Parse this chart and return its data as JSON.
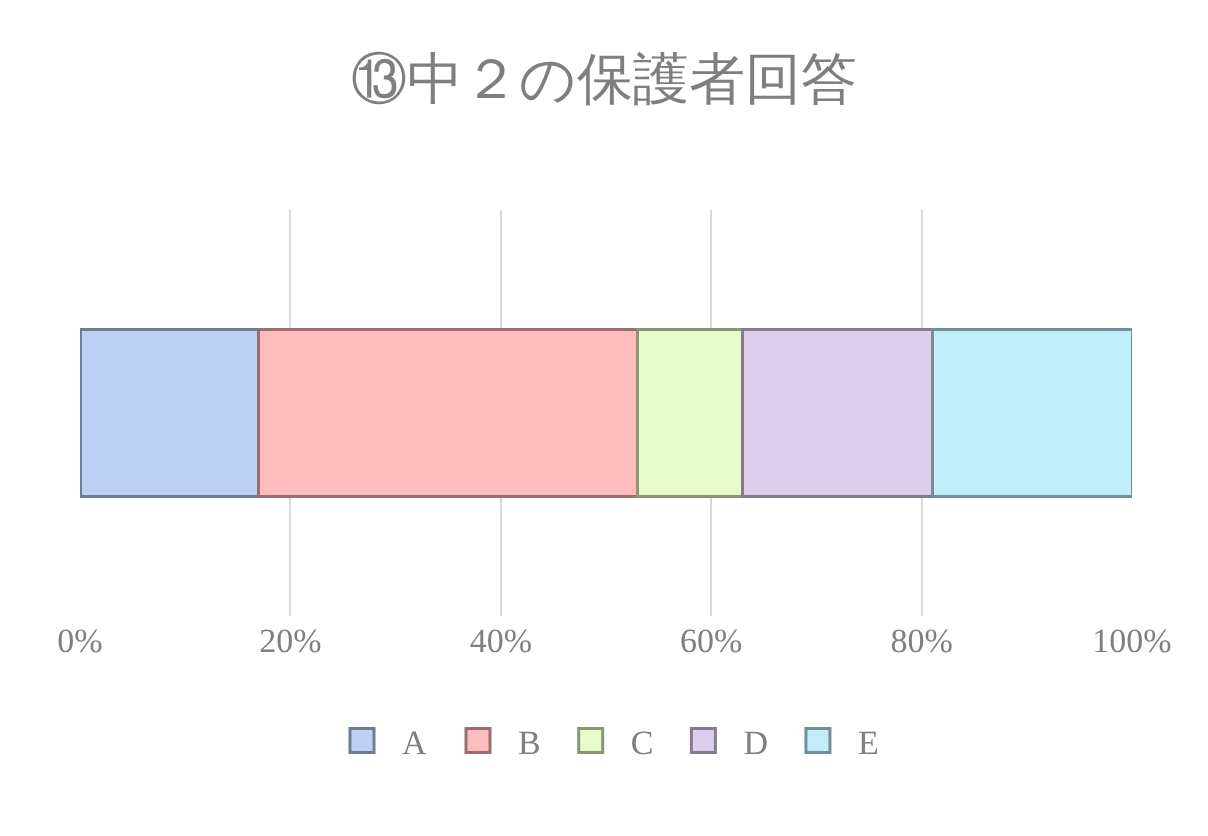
{
  "chart_data": {
    "type": "bar",
    "title": "⑬中２の保護者回答",
    "orientation": "horizontal",
    "stacked": true,
    "categories": [
      null
    ],
    "series": [
      {
        "name": "A",
        "color": "#bcd0f6",
        "values": [
          17
        ]
      },
      {
        "name": "B",
        "color": "#ffbcbc",
        "values": [
          36
        ]
      },
      {
        "name": "C",
        "color": "#e8fbc8",
        "values": [
          10
        ]
      },
      {
        "name": "D",
        "color": "#dccfee",
        "values": [
          18
        ]
      },
      {
        "name": "E",
        "color": "#c0eefb",
        "values": [
          19
        ]
      }
    ],
    "xlim": [
      0,
      100
    ],
    "xticks": [
      {
        "value": 0,
        "label": "0%"
      },
      {
        "value": 20,
        "label": "20%"
      },
      {
        "value": 40,
        "label": "40%"
      },
      {
        "value": 60,
        "label": "60%"
      },
      {
        "value": 80,
        "label": "80%"
      },
      {
        "value": 100,
        "label": "100%"
      }
    ],
    "grid": "x",
    "legend": "bottom"
  }
}
